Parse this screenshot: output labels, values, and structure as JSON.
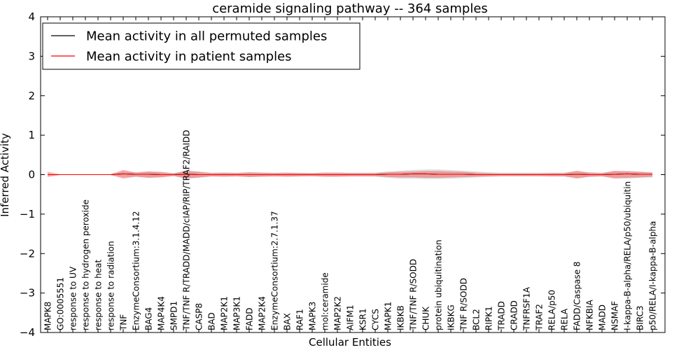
{
  "chart_data": {
    "type": "line",
    "title": "ceramide signaling pathway -- 364 samples",
    "xlabel": "Cellular Entities",
    "ylabel": "Inferred Activity",
    "ylim": [
      -4,
      4
    ],
    "yticks": [
      -4,
      -3,
      -2,
      -1,
      0,
      1,
      2,
      3,
      4
    ],
    "yticklabels": [
      "−4",
      "−3",
      "−2",
      "−1",
      "0",
      "1",
      "2",
      "3",
      "4"
    ],
    "legend_position": "top-left",
    "categories": [
      "MAPK8",
      "GO:0005551",
      "response to UV",
      "response to hydrogen peroxide",
      "response to heat",
      "response to radiation",
      "TNF",
      "EnzymeConsortium:3.1.4.12",
      "BAG4",
      "MAP4K4",
      "SMPD1",
      "TNF/TNF R/TRADD/MADD/cIAP/RIP/TRAF2/RAIDD",
      "CASP8",
      "BAD",
      "MAP2K1",
      "MAP3K1",
      "FADD",
      "MAP2K4",
      "EnzymeConsortium:2.7.1.37",
      "BAX",
      "RAF1",
      "MAPK3",
      "mol:ceramide",
      "MAP2K2",
      "AIFM1",
      "KSR1",
      "CYCS",
      "MAPK1",
      "IKBKB",
      "TNF/TNF R/SODD",
      "CHUK",
      "protein ubiquitination",
      "IKBKG",
      "TNF R/SODD",
      "BCL2",
      "RIPK1",
      "TRADD",
      "CRADD",
      "TNFRSF1A",
      "TRAF2",
      "RELA/p50",
      "RELA",
      "FADD/Caspase 8",
      "NFKBIA",
      "MADD",
      "NSMAF",
      "I-kappa-B-alpha/RELA/p50/ubiquitin",
      "BIRC3",
      "p50/RELA/I-kappa-B-alpha"
    ],
    "series": [
      {
        "name": "Mean activity in all permuted samples",
        "color": "#000000",
        "values": [
          0,
          0,
          0,
          0,
          0,
          0,
          0.02,
          0.01,
          0.01,
          0,
          0,
          0.01,
          0,
          0,
          0,
          0,
          0,
          0,
          0,
          0,
          0,
          0,
          0,
          0,
          0,
          0,
          0,
          0.01,
          0.01,
          0.02,
          0.02,
          0.01,
          0.01,
          0.01,
          0,
          0,
          0,
          0,
          0,
          0,
          0,
          0,
          0.01,
          0,
          0,
          0.01,
          0.02,
          0.01,
          0.01
        ],
        "band_upper": [
          0.02,
          0.01,
          0.01,
          0.01,
          0.01,
          0.01,
          0.08,
          0.06,
          0.08,
          0.06,
          0.04,
          0.1,
          0.08,
          0.05,
          0.05,
          0.05,
          0.06,
          0.05,
          0.05,
          0.05,
          0.05,
          0.04,
          0.05,
          0.05,
          0.05,
          0.05,
          0.05,
          0.08,
          0.1,
          0.12,
          0.13,
          0.13,
          0.12,
          0.1,
          0.08,
          0.06,
          0.05,
          0.05,
          0.05,
          0.05,
          0.05,
          0.05,
          0.08,
          0.06,
          0.05,
          0.08,
          0.1,
          0.08,
          0.06
        ],
        "band_lower": [
          -0.02,
          -0.01,
          -0.01,
          -0.01,
          -0.01,
          -0.01,
          -0.06,
          -0.05,
          -0.08,
          -0.06,
          -0.04,
          -0.1,
          -0.08,
          -0.05,
          -0.05,
          -0.05,
          -0.06,
          -0.05,
          -0.05,
          -0.05,
          -0.05,
          -0.04,
          -0.05,
          -0.05,
          -0.05,
          -0.05,
          -0.05,
          -0.08,
          -0.1,
          -0.1,
          -0.11,
          -0.11,
          -0.1,
          -0.09,
          -0.07,
          -0.06,
          -0.05,
          -0.05,
          -0.05,
          -0.05,
          -0.05,
          -0.05,
          -0.08,
          -0.06,
          -0.05,
          -0.08,
          -0.1,
          -0.08,
          -0.07
        ]
      },
      {
        "name": "Mean activity in patient samples",
        "color": "#ff0000",
        "values": [
          0,
          0,
          0,
          0,
          0,
          0,
          0.02,
          0.01,
          0.01,
          0,
          0,
          0.01,
          0,
          0,
          0,
          0,
          0,
          0,
          0,
          0,
          0,
          0,
          0,
          0,
          0,
          0,
          0,
          0.01,
          0.01,
          0.02,
          0.02,
          0.01,
          0.01,
          0.01,
          0,
          0,
          0,
          0,
          0,
          0,
          0,
          0,
          0.01,
          0,
          0,
          0.01,
          0.02,
          0.01,
          0.01
        ],
        "band_upper": [
          0.07,
          0.01,
          0.01,
          0.01,
          0.01,
          0.01,
          0.12,
          0.05,
          0.08,
          0.07,
          0.03,
          0.1,
          0.07,
          0.04,
          0.05,
          0.04,
          0.06,
          0.05,
          0.04,
          0.05,
          0.04,
          0.04,
          0.05,
          0.05,
          0.04,
          0.04,
          0.04,
          0.06,
          0.07,
          0.08,
          0.09,
          0.09,
          0.08,
          0.07,
          0.05,
          0.04,
          0.03,
          0.03,
          0.03,
          0.03,
          0.04,
          0.04,
          0.1,
          0.05,
          0.04,
          0.1,
          0.08,
          0.07,
          0.05
        ],
        "band_lower": [
          -0.06,
          -0.01,
          -0.01,
          -0.01,
          -0.01,
          -0.01,
          -0.1,
          -0.05,
          -0.08,
          -0.07,
          -0.03,
          -0.1,
          -0.07,
          -0.04,
          -0.05,
          -0.04,
          -0.06,
          -0.05,
          -0.04,
          -0.05,
          -0.04,
          -0.04,
          -0.05,
          -0.05,
          -0.04,
          -0.04,
          -0.04,
          -0.06,
          -0.07,
          -0.07,
          -0.08,
          -0.08,
          -0.07,
          -0.06,
          -0.05,
          -0.04,
          -0.03,
          -0.03,
          -0.03,
          -0.03,
          -0.04,
          -0.04,
          -0.1,
          -0.05,
          -0.04,
          -0.1,
          -0.08,
          -0.07,
          -0.05
        ]
      }
    ]
  }
}
